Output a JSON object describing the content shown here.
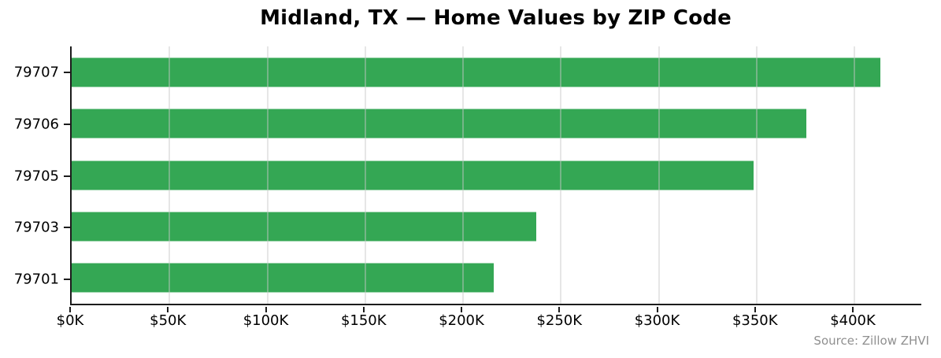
{
  "chart_data": {
    "type": "bar",
    "orientation": "horizontal",
    "title": "Midland, TX — Home Values by ZIP Code",
    "categories": [
      "79707",
      "79706",
      "79705",
      "79703",
      "79701"
    ],
    "values": [
      414,
      376,
      349,
      238,
      216
    ],
    "value_unit": "thousand USD",
    "xlabel": "",
    "ylabel": "",
    "xlim": [
      0,
      435
    ],
    "xticks": [
      {
        "value": 0,
        "label": "$0K"
      },
      {
        "value": 50,
        "label": "$50K"
      },
      {
        "value": 100,
        "label": "$100K"
      },
      {
        "value": 150,
        "label": "$150K"
      },
      {
        "value": 200,
        "label": "$200K"
      },
      {
        "value": 250,
        "label": "$250K"
      },
      {
        "value": 300,
        "label": "$300K"
      },
      {
        "value": 350,
        "label": "$350K"
      },
      {
        "value": 400,
        "label": "$400K"
      }
    ],
    "grid": "vertical gridlines at each x tick",
    "legend": "none",
    "bar_color": "#34a754",
    "source_note": "Source: Zillow ZHVI"
  }
}
